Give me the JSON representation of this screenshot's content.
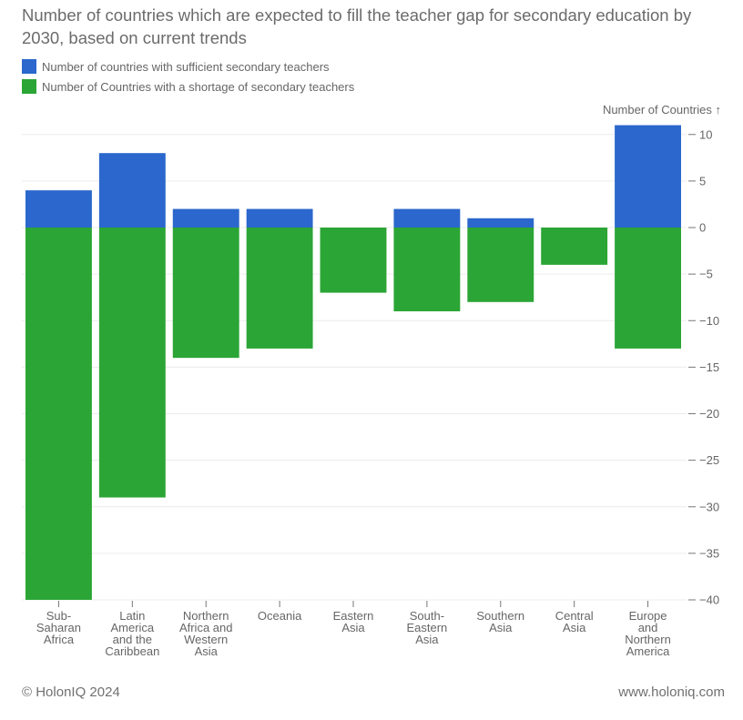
{
  "chart_data": {
    "type": "bar",
    "stacked": true,
    "title": "Number of countries which are expected to fill the teacher gap for secondary education by 2030, based on current trends",
    "xlabel": "",
    "ylabel": "Number of Countries ↑",
    "ylim": [
      -40,
      11
    ],
    "yticks": [
      10,
      5,
      0,
      -5,
      -10,
      -15,
      -20,
      -25,
      -30,
      -35,
      -40
    ],
    "ytick_labels": [
      "10",
      "5",
      "0",
      "−5",
      "−10",
      "−15",
      "−20",
      "−25",
      "−30",
      "−35",
      "−40"
    ],
    "grid": true,
    "legend_position": "top-left",
    "categories": [
      [
        "Sub-",
        "Saharan",
        "Africa"
      ],
      [
        "Latin",
        "America",
        "and the",
        "Caribbean"
      ],
      [
        "Northern",
        "Africa and",
        "Western",
        "Asia"
      ],
      [
        "Oceania"
      ],
      [
        "Eastern",
        "Asia"
      ],
      [
        "South-",
        "Eastern",
        "Asia"
      ],
      [
        "Southern",
        "Asia"
      ],
      [
        "Central",
        "Asia"
      ],
      [
        "Europe",
        "and",
        "Northern",
        "America"
      ]
    ],
    "series": [
      {
        "name": "Number of countries with sufficient secondary teachers",
        "color": "#2b67cc",
        "values": [
          4,
          8,
          2,
          2,
          0,
          2,
          1,
          0,
          11
        ]
      },
      {
        "name": "Number of Countries with a shortage of secondary teachers",
        "color": "#2ba535",
        "values": [
          -40,
          -29,
          -14,
          -13,
          -7,
          -9,
          -8,
          -4,
          -13
        ]
      }
    ]
  },
  "footer": {
    "copyright": "© HolonIQ 2024",
    "website": "www.holoniq.com"
  }
}
